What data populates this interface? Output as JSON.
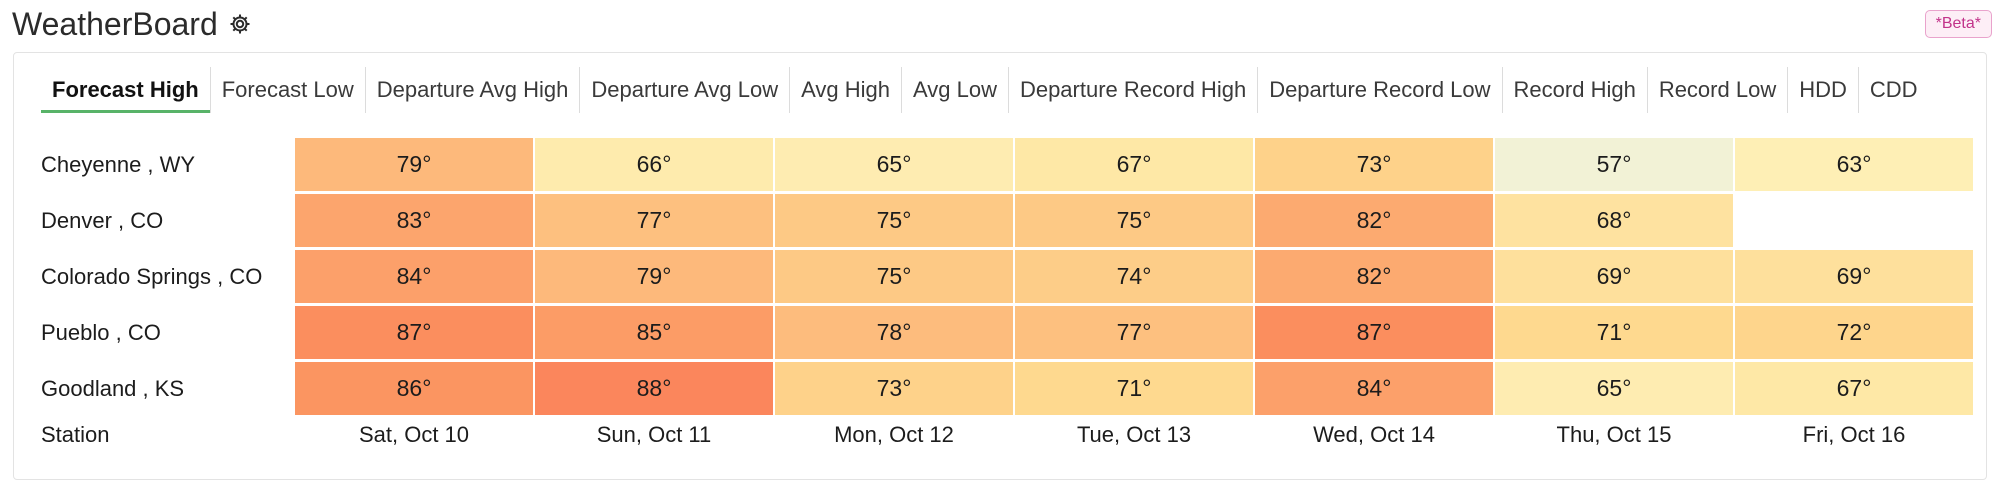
{
  "app": {
    "title": "WeatherBoard",
    "badge": "*Beta*"
  },
  "tabs": [
    {
      "label": "Forecast High",
      "active": true
    },
    {
      "label": "Forecast Low"
    },
    {
      "label": "Departure Avg High"
    },
    {
      "label": "Departure Avg Low"
    },
    {
      "label": "Avg High"
    },
    {
      "label": "Avg Low"
    },
    {
      "label": "Departure Record High"
    },
    {
      "label": "Departure Record Low"
    },
    {
      "label": "Record High"
    },
    {
      "label": "Record Low"
    },
    {
      "label": "HDD"
    },
    {
      "label": "CDD"
    }
  ],
  "table": {
    "station_header": "Station",
    "days": [
      "Sat, Oct 10",
      "Sun, Oct 11",
      "Mon, Oct 12",
      "Tue, Oct 13",
      "Wed, Oct 14",
      "Thu, Oct 15",
      "Fri, Oct 16"
    ],
    "rows": [
      {
        "station": "Cheyenne , WY",
        "cells": [
          {
            "text": "79°",
            "color": "#fdb97b"
          },
          {
            "text": "66°",
            "color": "#feebad"
          },
          {
            "text": "65°",
            "color": "#feecb1"
          },
          {
            "text": "67°",
            "color": "#fee8a6"
          },
          {
            "text": "73°",
            "color": "#fed28a"
          },
          {
            "text": "57°",
            "color": "#f2f2d6"
          },
          {
            "text": "63°",
            "color": "#feefb5"
          }
        ]
      },
      {
        "station": "Denver , CO",
        "cells": [
          {
            "text": "83°",
            "color": "#fca56d"
          },
          {
            "text": "77°",
            "color": "#fdc07f"
          },
          {
            "text": "75°",
            "color": "#fdc985"
          },
          {
            "text": "75°",
            "color": "#fdc985"
          },
          {
            "text": "82°",
            "color": "#fcaa70"
          },
          {
            "text": "68°",
            "color": "#fee2a0"
          },
          {
            "text": "",
            "color": ""
          }
        ]
      },
      {
        "station": "Colorado Springs , CO",
        "cells": [
          {
            "text": "84°",
            "color": "#fca06a"
          },
          {
            "text": "79°",
            "color": "#fdb97b"
          },
          {
            "text": "75°",
            "color": "#fdc985"
          },
          {
            "text": "74°",
            "color": "#fdcd88"
          },
          {
            "text": "82°",
            "color": "#fcaa70"
          },
          {
            "text": "69°",
            "color": "#fee09c"
          },
          {
            "text": "69°",
            "color": "#fee09c"
          }
        ]
      },
      {
        "station": "Pueblo , CO",
        "cells": [
          {
            "text": "87°",
            "color": "#fb8e5e"
          },
          {
            "text": "85°",
            "color": "#fc9c66"
          },
          {
            "text": "78°",
            "color": "#fdbc7d"
          },
          {
            "text": "77°",
            "color": "#fdc07f"
          },
          {
            "text": "87°",
            "color": "#fb8e5e"
          },
          {
            "text": "71°",
            "color": "#fed98f"
          },
          {
            "text": "72°",
            "color": "#fed58c"
          }
        ]
      },
      {
        "station": "Goodland , KS",
        "cells": [
          {
            "text": "86°",
            "color": "#fb9561"
          },
          {
            "text": "88°",
            "color": "#fb865c"
          },
          {
            "text": "73°",
            "color": "#fed28a"
          },
          {
            "text": "71°",
            "color": "#fed98f"
          },
          {
            "text": "84°",
            "color": "#fca06a"
          },
          {
            "text": "65°",
            "color": "#feecb1"
          },
          {
            "text": "67°",
            "color": "#fee8a6"
          }
        ]
      }
    ]
  }
}
